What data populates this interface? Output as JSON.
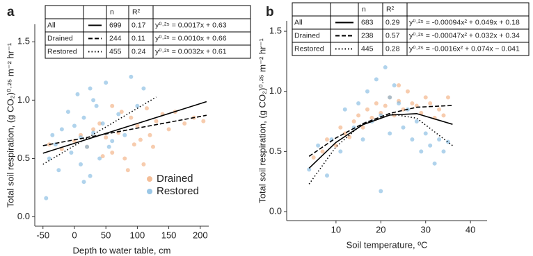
{
  "chart_data": [
    {
      "type": "scatter",
      "panel": "a",
      "xlabel": "Depth to water table, cm",
      "ylabel": "Total soil respiration, (g CO₂)⁰·²⁵ m⁻² hr⁻¹",
      "xlim": [
        -63,
        213.5
      ],
      "ylim": [
        -0.08,
        1.65
      ],
      "xticks": [
        -50,
        0,
        50,
        100,
        150,
        200
      ],
      "yticks": [
        {
          "value": 0,
          "label": "0.0"
        },
        0.5,
        {
          "value": 1,
          "label": "1.0"
        },
        1.5
      ],
      "legend": "bottom-right",
      "series": [
        {
          "name": "Drained",
          "color": "#f0a36c",
          "x": [
            -40,
            -20,
            0,
            10,
            20,
            30,
            40,
            50,
            60,
            70,
            75,
            80,
            90,
            95,
            100,
            110,
            115,
            120,
            130,
            140,
            150,
            160,
            175,
            190,
            205,
            60,
            85,
            105,
            45,
            125
          ],
          "values": [
            0.62,
            0.58,
            0.65,
            0.7,
            0.6,
            0.75,
            0.8,
            0.68,
            0.55,
            0.72,
            0.9,
            0.5,
            0.85,
            0.62,
            0.78,
            0.45,
            0.93,
            0.7,
            0.82,
            0.88,
            0.75,
            0.9,
            0.8,
            0.85,
            0.82,
            0.95,
            0.4,
            0.66,
            0.52,
            0.6
          ]
        },
        {
          "name": "Restored",
          "color": "#6fafdc",
          "x": [
            -45,
            -40,
            -30,
            -25,
            -20,
            -10,
            -5,
            0,
            5,
            10,
            10,
            15,
            20,
            25,
            25,
            30,
            35,
            40,
            45,
            50,
            60,
            70,
            80,
            90,
            100,
            110,
            -35,
            15,
            30,
            55
          ],
          "values": [
            0.16,
            0.5,
            0.62,
            0.4,
            0.75,
            0.9,
            0.55,
            0.78,
            1.05,
            0.68,
            0.45,
            0.85,
            0.6,
            1.1,
            0.35,
            0.72,
            0.95,
            0.5,
            0.8,
            1.15,
            0.65,
            0.88,
            0.7,
            1.2,
            0.95,
            1.1,
            0.7,
            0.3,
            1.0,
            0.6
          ]
        }
      ],
      "table_header": [
        "n",
        "R²"
      ],
      "fits": [
        {
          "name": "All",
          "dash": "solid",
          "n": 699,
          "r2": 0.17,
          "equation": "y⁰·²⁵ = 0.0017x + 0.63",
          "x": [
            -50,
            30,
            110,
            210
          ],
          "values": [
            0.545,
            0.681,
            0.817,
            0.987
          ]
        },
        {
          "name": "Drained",
          "dash": "dash",
          "n": 244,
          "r2": 0.11,
          "equation": "y⁰·²⁵ = 0.0010x + 0.66",
          "x": [
            -50,
            50,
            150,
            210
          ],
          "values": [
            0.61,
            0.71,
            0.81,
            0.87
          ]
        },
        {
          "name": "Restored",
          "dash": "dot",
          "n": 455,
          "r2": 0.24,
          "equation": "y⁰·²⁵ = 0.0032x + 0.61",
          "x": [
            -50,
            0,
            50,
            130
          ],
          "values": [
            0.45,
            0.61,
            0.77,
            1.026
          ]
        }
      ]
    },
    {
      "type": "scatter",
      "panel": "b",
      "xlabel": "Soil temperature, ºC",
      "ylabel": "Total soil respiration, (g CO₂)⁰·²⁵ m⁻² hr⁻¹",
      "xlim": [
        -1,
        43.7
      ],
      "ylim": [
        -0.075,
        1.587
      ],
      "xticks": [
        10,
        20,
        30,
        40
      ],
      "yticks": [
        {
          "value": 0,
          "label": "0.0"
        },
        0.5,
        {
          "value": 1,
          "label": "1.0"
        },
        1.5
      ],
      "series": [
        {
          "color": "#f0a36c",
          "x": [
            5,
            7,
            8,
            10,
            11,
            12,
            13,
            14,
            15,
            16,
            17,
            18,
            19,
            20,
            21,
            22,
            23,
            24,
            25,
            26,
            27,
            28,
            29,
            30,
            31,
            32,
            33,
            34,
            35,
            24
          ],
          "values": [
            0.45,
            0.5,
            0.6,
            0.55,
            0.7,
            0.65,
            0.62,
            0.75,
            0.8,
            0.7,
            0.85,
            0.78,
            0.9,
            0.82,
            0.88,
            0.95,
            0.8,
            0.92,
            0.85,
            1.0,
            0.9,
            0.88,
            0.82,
            0.95,
            0.9,
            0.78,
            0.85,
            0.8,
            0.95,
            1.05
          ]
        },
        {
          "color": "#6fafdc",
          "x": [
            4,
            6,
            8,
            9,
            11,
            12,
            14,
            15,
            16,
            17,
            18,
            19,
            20,
            21,
            22,
            22,
            23,
            24,
            25,
            26,
            27,
            28,
            29,
            30,
            31,
            32,
            33,
            34,
            35,
            20
          ],
          "values": [
            0.35,
            0.55,
            0.3,
            0.6,
            0.5,
            0.85,
            0.7,
            0.9,
            0.6,
            1.0,
            0.75,
            1.1,
            0.8,
            1.2,
            0.95,
            0.65,
            1.05,
            0.9,
            0.7,
            0.85,
            0.6,
            0.75,
            0.5,
            0.65,
            0.55,
            0.4,
            0.6,
            0.5,
            0.58,
            0.17
          ]
        }
      ],
      "table_header": [
        "n",
        "R²"
      ],
      "fits": [
        {
          "name": "All",
          "dash": "solid",
          "n": 683,
          "r2": 0.29,
          "equation": "y⁰·²⁵ = -0.00094x² + 0.049x + 0.18",
          "x": [
            4,
            10,
            16,
            22,
            28,
            36
          ],
          "values": [
            0.361,
            0.576,
            0.723,
            0.803,
            0.815,
            0.726
          ]
        },
        {
          "name": "Drained",
          "dash": "dash",
          "n": 238,
          "r2": 0.57,
          "equation": "y⁰·²⁵ = -0.00047x² + 0.032x + 0.34",
          "x": [
            4,
            10,
            16,
            22,
            28,
            36
          ],
          "values": [
            0.46,
            0.613,
            0.732,
            0.817,
            0.868,
            0.883
          ]
        },
        {
          "name": "Restored",
          "dash": "dot",
          "n": 445,
          "r2": 0.28,
          "equation": "y⁰·²⁵ = -0.0016x² + 0.074x − 0.041",
          "x": [
            4,
            10,
            16,
            22,
            28,
            36
          ],
          "values": [
            0.229,
            0.539,
            0.733,
            0.813,
            0.777,
            0.549
          ]
        }
      ]
    }
  ]
}
